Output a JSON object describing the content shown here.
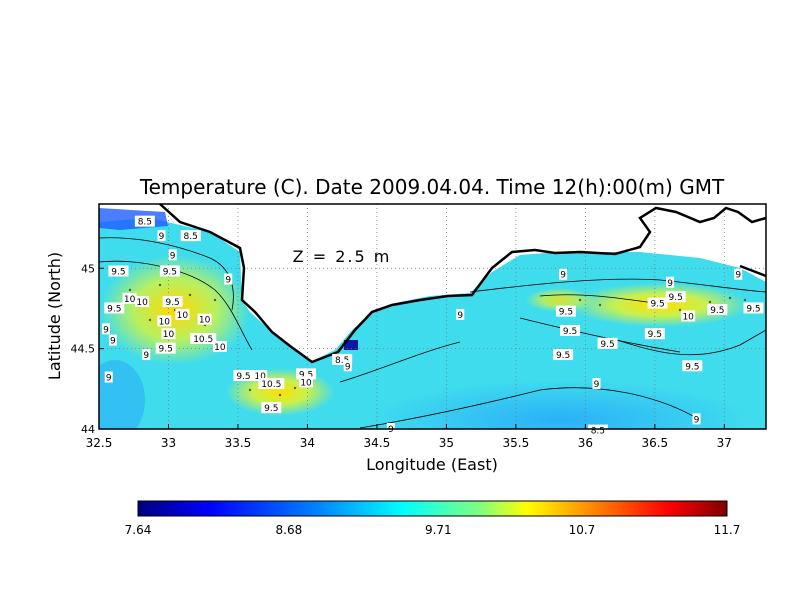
{
  "chart_data": {
    "type": "heatmap",
    "title": "Temperature (C). Date 2009.04.04. Time 12(h):00(m) GMT",
    "annotation": "Z = 2.5 m",
    "xlabel": "Longitude (East)",
    "ylabel": "Latitude (North)",
    "xlim": [
      32.5,
      37.3
    ],
    "ylim": [
      44.0,
      45.4
    ],
    "x_ticks": [
      "32.5",
      "33",
      "33.5",
      "34",
      "34.5",
      "35",
      "35.5",
      "36",
      "36.5",
      "37"
    ],
    "x_tick_values": [
      32.5,
      33,
      33.5,
      34,
      34.5,
      35,
      35.5,
      36,
      36.5,
      37
    ],
    "y_ticks": [
      "44",
      "44.5",
      "45"
    ],
    "y_tick_values": [
      44,
      44.5,
      45
    ],
    "grid": true,
    "colorbar": {
      "labels": [
        "7.64",
        "8.68",
        "9.71",
        "10.7",
        "11.7"
      ],
      "values": [
        7.64,
        8.68,
        9.71,
        10.7,
        11.7
      ],
      "colors": [
        "#00007f",
        "#0000ff",
        "#007fff",
        "#00ffff",
        "#7fff7f",
        "#ffff00",
        "#ff7f00",
        "#ff0000",
        "#7f0000"
      ]
    },
    "contour_labels": [
      {
        "text": "8.5",
        "lon": 32.83,
        "lat": 45.29
      },
      {
        "text": "9",
        "lon": 32.95,
        "lat": 45.2
      },
      {
        "text": "8.5",
        "lon": 33.16,
        "lat": 45.2
      },
      {
        "text": "9",
        "lon": 33.03,
        "lat": 45.08
      },
      {
        "text": "9.5",
        "lon": 32.64,
        "lat": 44.98
      },
      {
        "text": "9.5",
        "lon": 33.01,
        "lat": 44.98
      },
      {
        "text": "9",
        "lon": 33.43,
        "lat": 44.93
      },
      {
        "text": "10",
        "lon": 32.72,
        "lat": 44.81
      },
      {
        "text": "10",
        "lon": 32.81,
        "lat": 44.79
      },
      {
        "text": "9.5",
        "lon": 33.03,
        "lat": 44.79
      },
      {
        "text": "9.5",
        "lon": 32.61,
        "lat": 44.75
      },
      {
        "text": "10",
        "lon": 33.1,
        "lat": 44.71
      },
      {
        "text": "10",
        "lon": 33.26,
        "lat": 44.68
      },
      {
        "text": "10",
        "lon": 32.97,
        "lat": 44.67
      },
      {
        "text": "9",
        "lon": 32.55,
        "lat": 44.62
      },
      {
        "text": "10",
        "lon": 33.0,
        "lat": 44.59
      },
      {
        "text": "10.5",
        "lon": 33.25,
        "lat": 44.56
      },
      {
        "text": "9",
        "lon": 32.6,
        "lat": 44.55
      },
      {
        "text": "10",
        "lon": 33.37,
        "lat": 44.51
      },
      {
        "text": "9.5",
        "lon": 32.98,
        "lat": 44.5
      },
      {
        "text": "9",
        "lon": 32.84,
        "lat": 44.46
      },
      {
        "text": "9",
        "lon": 32.57,
        "lat": 44.32
      },
      {
        "text": "9.5",
        "lon": 33.54,
        "lat": 44.33
      },
      {
        "text": "10",
        "lon": 33.66,
        "lat": 44.33
      },
      {
        "text": "10.5",
        "lon": 33.74,
        "lat": 44.28
      },
      {
        "text": "9.5",
        "lon": 33.99,
        "lat": 44.34
      },
      {
        "text": "10",
        "lon": 33.99,
        "lat": 44.29
      },
      {
        "text": "9.5",
        "lon": 33.74,
        "lat": 44.13
      },
      {
        "text": "8.5",
        "lon": 34.25,
        "lat": 44.43
      },
      {
        "text": "9",
        "lon": 34.29,
        "lat": 44.39
      },
      {
        "text": "9",
        "lon": 34.6,
        "lat": 44.0
      },
      {
        "text": "9",
        "lon": 35.1,
        "lat": 44.71
      },
      {
        "text": "9",
        "lon": 35.84,
        "lat": 44.96
      },
      {
        "text": "9.5",
        "lon": 35.86,
        "lat": 44.73
      },
      {
        "text": "9.5",
        "lon": 35.89,
        "lat": 44.61
      },
      {
        "text": "9.5",
        "lon": 36.16,
        "lat": 44.53
      },
      {
        "text": "9.5",
        "lon": 35.84,
        "lat": 44.46
      },
      {
        "text": "9",
        "lon": 36.61,
        "lat": 44.91
      },
      {
        "text": "9.5",
        "lon": 36.52,
        "lat": 44.78
      },
      {
        "text": "9.5",
        "lon": 36.65,
        "lat": 44.82
      },
      {
        "text": "10",
        "lon": 36.74,
        "lat": 44.7
      },
      {
        "text": "9.5",
        "lon": 36.5,
        "lat": 44.59
      },
      {
        "text": "9.5",
        "lon": 36.95,
        "lat": 44.74
      },
      {
        "text": "9.5",
        "lon": 37.21,
        "lat": 44.75
      },
      {
        "text": "9",
        "lon": 37.1,
        "lat": 44.96
      },
      {
        "text": "9.5",
        "lon": 36.77,
        "lat": 44.39
      },
      {
        "text": "9",
        "lon": 36.08,
        "lat": 44.28
      },
      {
        "text": "9",
        "lon": 36.8,
        "lat": 44.06
      },
      {
        "text": "8.5",
        "lon": 36.09,
        "lat": 43.99
      }
    ]
  }
}
